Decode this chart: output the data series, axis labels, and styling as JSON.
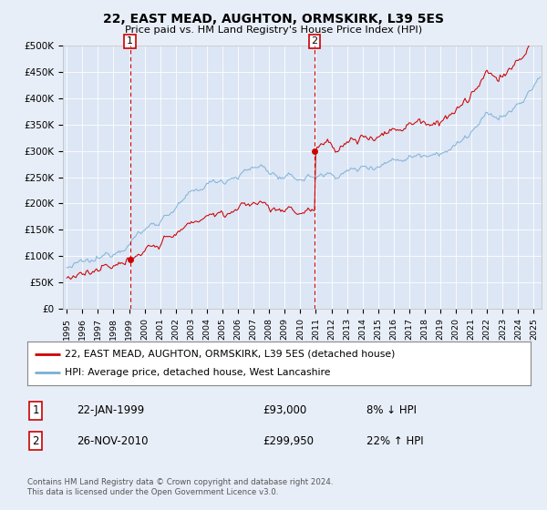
{
  "title": "22, EAST MEAD, AUGHTON, ORMSKIRK, L39 5ES",
  "subtitle": "Price paid vs. HM Land Registry's House Price Index (HPI)",
  "ylim": [
    0,
    500000
  ],
  "xlim_start": 1994.75,
  "xlim_end": 2025.5,
  "sale1_date": 1999.06,
  "sale1_price": 93000,
  "sale2_date": 2010.92,
  "sale2_price": 299950,
  "legend_line1": "22, EAST MEAD, AUGHTON, ORMSKIRK, L39 5ES (detached house)",
  "legend_line2": "HPI: Average price, detached house, West Lancashire",
  "info1_num": "1",
  "info1_date": "22-JAN-1999",
  "info1_price": "£93,000",
  "info1_hpi": "8% ↓ HPI",
  "info2_num": "2",
  "info2_date": "26-NOV-2010",
  "info2_price": "£299,950",
  "info2_hpi": "22% ↑ HPI",
  "footer": "Contains HM Land Registry data © Crown copyright and database right 2024.\nThis data is licensed under the Open Government Licence v3.0.",
  "hpi_color": "#7bafd4",
  "price_color": "#cc0000",
  "bg_color": "#e8eef8",
  "plot_bg": "#dce6f5",
  "grid_color": "#c8d4e8",
  "box_color": "#cc0000"
}
